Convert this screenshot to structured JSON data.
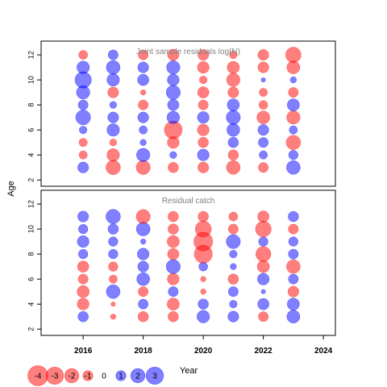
{
  "chart_data": {
    "type": "scatter",
    "xlabel": "Year",
    "ylabel": "Age",
    "xlim": [
      2014.6,
      2024.4
    ],
    "x_ticks": [
      2016,
      2018,
      2020,
      2022,
      2024
    ],
    "years": [
      2016,
      2017,
      2018,
      2019,
      2020,
      2021,
      2022,
      2023
    ],
    "colors": {
      "negative": "#ff0000",
      "positive": "#0000ff"
    },
    "panels": [
      {
        "title": "Joint sample residuals log(N)",
        "ylim": [
          1.5,
          13.1
        ],
        "y_ticks": [
          2,
          4,
          6,
          8,
          10,
          12
        ],
        "ages": [
          3,
          4,
          5,
          6,
          7,
          8,
          9,
          10,
          11,
          12
        ],
        "residuals": [
          [
            1.2,
            -0.7,
            -0.7,
            0.6,
            2.2,
            1.0,
            1.8,
            2.7,
            1.6,
            -0.8
          ],
          [
            -2.1,
            -1.6,
            -0.5,
            1.6,
            1.2,
            0.5,
            -1.2,
            1.6,
            1.9,
            1.0
          ],
          [
            -2.0,
            1.8,
            0.4,
            0.7,
            1.2,
            -1.0,
            -0.3,
            1.3,
            1.2,
            -1.0
          ],
          [
            -1.1,
            0.5,
            -1.4,
            -3.2,
            1.6,
            1.3,
            2.0,
            1.4,
            1.8,
            -1.3
          ],
          [
            -1.2,
            1.4,
            -1.1,
            -1.4,
            1.4,
            -1.0,
            -1.3,
            -0.6,
            -1.4,
            -1.2
          ],
          [
            -1.9,
            -1.1,
            1.1,
            1.7,
            2.0,
            1.5,
            -1.2,
            -1.8,
            -1.5,
            -0.6
          ],
          [
            -1.0,
            0.7,
            1.0,
            1.2,
            -1.7,
            -0.8,
            -0.7,
            0.2,
            -1.2,
            -1.2
          ],
          [
            1.9,
            0.9,
            -2.1,
            0.7,
            -1.8,
            1.5,
            -1.0,
            0.4,
            -1.7,
            -2.4
          ]
        ]
      },
      {
        "title": "Residual catch",
        "ylim": [
          1.5,
          13.1
        ],
        "y_ticks": [
          2,
          4,
          6,
          8,
          10,
          12
        ],
        "ages": [
          3,
          4,
          5,
          6,
          7,
          8,
          9,
          10,
          11
        ],
        "residuals": [
          [
            1.1,
            -1.4,
            -1.5,
            -1.0,
            -1.3,
            0.9,
            1.4,
            0.9,
            1.2
          ],
          [
            -0.3,
            -0.2,
            1.9,
            -0.7,
            -0.9,
            0.9,
            0.9,
            1.1,
            2.1
          ],
          [
            -1.1,
            1.0,
            -1.0,
            1.7,
            1.2,
            1.4,
            0.3,
            1.9,
            -2.0
          ],
          [
            -1.1,
            -1.5,
            1.0,
            -1.4,
            2.0,
            -1.3,
            -1.5,
            -1.1,
            -1.1
          ],
          [
            1.6,
            1.1,
            -0.3,
            -0.3,
            0.8,
            -3.3,
            -3.6,
            -2.6,
            -1.1
          ],
          [
            1.2,
            0.6,
            1.0,
            -1.1,
            0.4,
            0.6,
            2.0,
            -1.0,
            -0.8
          ],
          [
            -1.0,
            1.3,
            0.2,
            1.4,
            -1.5,
            -2.3,
            0.9,
            -2.5,
            -1.3
          ],
          [
            1.7,
            1.5,
            -1.2,
            1.0,
            -1.9,
            1.0,
            0.9,
            -1.0,
            1.1
          ]
        ]
      }
    ],
    "legend": {
      "placement": "bottom-left",
      "labels": [
        "-4",
        "-3",
        "-2",
        "-1",
        "0",
        "1",
        "2",
        "3"
      ],
      "values": [
        -4,
        -3,
        -2,
        -1,
        0,
        1,
        2,
        3
      ]
    }
  }
}
